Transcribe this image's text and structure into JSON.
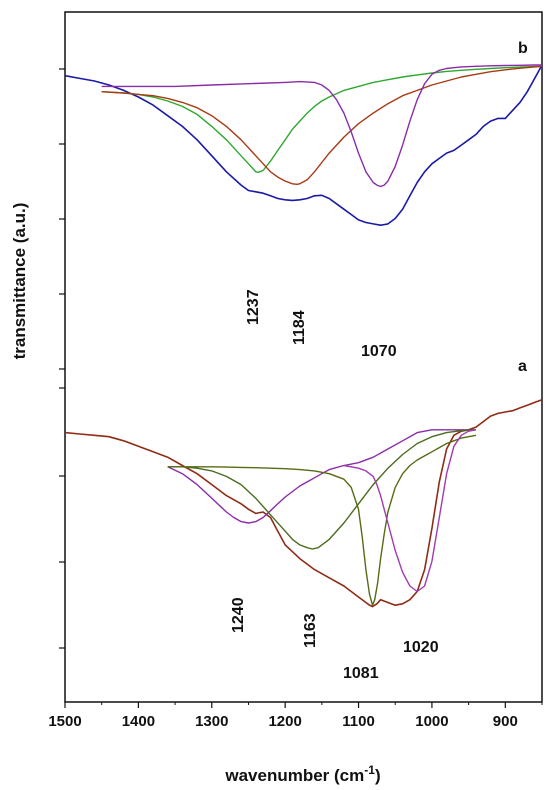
{
  "chart_data": {
    "type": "line",
    "xlabel": "wavenumber (cm",
    "xlabel_sup": "-1",
    "xlabel_close": ")",
    "ylabel": "transmittance (a.u.)",
    "xlim": [
      1500,
      850
    ],
    "x_reversed": true,
    "x_ticks": [
      "1500",
      "1400",
      "1300",
      "1200",
      "1100",
      "1000",
      "900"
    ],
    "y_ticks_labelled": false,
    "grid": false,
    "panels": [
      {
        "label": "b",
        "peak_labels": [
          "1237",
          "1184",
          "1070"
        ],
        "series": [
          {
            "color": "#1a1aa6",
            "kind": "measured",
            "x": [
              1500,
              1480,
              1460,
              1440,
              1420,
              1400,
              1380,
              1360,
              1340,
              1320,
              1300,
              1280,
              1260,
              1250,
              1240,
              1230,
              1220,
              1210,
              1200,
              1190,
              1180,
              1170,
              1160,
              1150,
              1140,
              1130,
              1120,
              1110,
              1100,
              1090,
              1080,
              1070,
              1060,
              1050,
              1040,
              1030,
              1020,
              1010,
              1000,
              990,
              980,
              970,
              960,
              950,
              940,
              930,
              920,
              910,
              900,
              890,
              880,
              870,
              860,
              850
            ],
            "y": [
              0.96,
              0.95,
              0.94,
              0.925,
              0.905,
              0.88,
              0.85,
              0.81,
              0.77,
              0.72,
              0.66,
              0.6,
              0.55,
              0.53,
              0.525,
              0.52,
              0.51,
              0.5,
              0.495,
              0.493,
              0.495,
              0.5,
              0.51,
              0.512,
              0.5,
              0.48,
              0.46,
              0.44,
              0.42,
              0.41,
              0.405,
              0.4,
              0.405,
              0.425,
              0.46,
              0.51,
              0.56,
              0.6,
              0.63,
              0.65,
              0.67,
              0.68,
              0.7,
              0.72,
              0.74,
              0.77,
              0.79,
              0.8,
              0.8,
              0.83,
              0.86,
              0.9,
              0.95,
              1.0
            ]
          },
          {
            "color": "#2ea82e",
            "kind": "fit",
            "x": [
              1450,
              1420,
              1400,
              1380,
              1360,
              1340,
              1320,
              1300,
              1280,
              1270,
              1260,
              1250,
              1240,
              1237,
              1230,
              1220,
              1210,
              1200,
              1190,
              1180,
              1170,
              1160,
              1150,
              1140,
              1120,
              1100,
              1080,
              1060,
              1040,
              1020,
              1000,
              980,
              960,
              940,
              920,
              900,
              880,
              860,
              850
            ],
            "y": [
              0.9,
              0.895,
              0.89,
              0.88,
              0.865,
              0.845,
              0.815,
              0.77,
              0.72,
              0.69,
              0.66,
              0.63,
              0.6,
              0.598,
              0.605,
              0.64,
              0.68,
              0.72,
              0.76,
              0.79,
              0.82,
              0.845,
              0.865,
              0.88,
              0.905,
              0.92,
              0.935,
              0.945,
              0.955,
              0.963,
              0.97,
              0.976,
              0.98,
              0.984,
              0.987,
              0.99,
              0.992,
              0.994,
              0.995
            ]
          },
          {
            "color": "#a83a14",
            "kind": "fit",
            "x": [
              1450,
              1420,
              1400,
              1380,
              1360,
              1340,
              1320,
              1300,
              1280,
              1260,
              1240,
              1220,
              1210,
              1200,
              1190,
              1184,
              1180,
              1170,
              1160,
              1150,
              1140,
              1120,
              1100,
              1080,
              1060,
              1040,
              1020,
              1000,
              980,
              960,
              940,
              920,
              900,
              880,
              860,
              850
            ],
            "y": [
              0.9,
              0.895,
              0.89,
              0.885,
              0.875,
              0.86,
              0.84,
              0.81,
              0.77,
              0.72,
              0.66,
              0.6,
              0.58,
              0.565,
              0.555,
              0.553,
              0.555,
              0.57,
              0.6,
              0.635,
              0.67,
              0.73,
              0.78,
              0.82,
              0.855,
              0.885,
              0.905,
              0.925,
              0.94,
              0.955,
              0.965,
              0.975,
              0.982,
              0.988,
              0.993,
              0.995
            ]
          },
          {
            "color": "#8a2ca8",
            "kind": "fit",
            "x": [
              1450,
              1400,
              1350,
              1300,
              1250,
              1200,
              1180,
              1160,
              1150,
              1140,
              1130,
              1120,
              1110,
              1100,
              1090,
              1080,
              1075,
              1070,
              1065,
              1060,
              1050,
              1040,
              1030,
              1020,
              1010,
              1000,
              990,
              980,
              970,
              960,
              940,
              920,
              900,
              880,
              860,
              850
            ],
            "y": [
              0.92,
              0.92,
              0.92,
              0.925,
              0.93,
              0.935,
              0.938,
              0.935,
              0.925,
              0.905,
              0.87,
              0.82,
              0.75,
              0.67,
              0.6,
              0.56,
              0.55,
              0.545,
              0.55,
              0.565,
              0.62,
              0.7,
              0.79,
              0.87,
              0.93,
              0.965,
              0.98,
              0.987,
              0.99,
              0.993,
              0.995,
              0.997,
              0.998,
              0.999,
              1.0,
              1.0
            ]
          }
        ]
      },
      {
        "label": "a",
        "peak_labels": [
          "1240",
          "1163",
          "1081",
          "1020"
        ],
        "series": [
          {
            "color": "#8e2c16",
            "kind": "measured",
            "x": [
              1500,
              1480,
              1460,
              1440,
              1420,
              1400,
              1380,
              1360,
              1340,
              1320,
              1300,
              1280,
              1260,
              1250,
              1240,
              1230,
              1220,
              1210,
              1200,
              1180,
              1160,
              1140,
              1120,
              1110,
              1100,
              1090,
              1085,
              1081,
              1075,
              1070,
              1060,
              1050,
              1040,
              1030,
              1020,
              1010,
              1000,
              990,
              980,
              970,
              960,
              950,
              940,
              930,
              920,
              910,
              900,
              890,
              880,
              870,
              860,
              850
            ],
            "y": [
              0.83,
              0.825,
              0.82,
              0.815,
              0.8,
              0.78,
              0.76,
              0.74,
              0.71,
              0.68,
              0.64,
              0.6,
              0.57,
              0.55,
              0.535,
              0.54,
              0.52,
              0.47,
              0.42,
              0.37,
              0.33,
              0.3,
              0.27,
              0.25,
              0.23,
              0.21,
              0.2,
              0.195,
              0.205,
              0.22,
              0.21,
              0.2,
              0.205,
              0.22,
              0.25,
              0.33,
              0.48,
              0.65,
              0.77,
              0.82,
              0.835,
              0.84,
              0.85,
              0.87,
              0.89,
              0.9,
              0.905,
              0.91,
              0.92,
              0.93,
              0.94,
              0.95
            ]
          },
          {
            "color": "#8a2ca8",
            "kind": "fit",
            "x": [
              1360,
              1340,
              1320,
              1300,
              1280,
              1270,
              1260,
              1250,
              1240,
              1230,
              1220,
              1210,
              1200,
              1190,
              1180,
              1170,
              1160,
              1150,
              1140,
              1120,
              1100,
              1080,
              1060,
              1040,
              1020,
              1000,
              980,
              960,
              940
            ],
            "y": [
              0.705,
              0.68,
              0.64,
              0.59,
              0.54,
              0.52,
              0.505,
              0.5,
              0.505,
              0.52,
              0.545,
              0.57,
              0.595,
              0.615,
              0.635,
              0.65,
              0.665,
              0.68,
              0.695,
              0.71,
              0.72,
              0.74,
              0.77,
              0.8,
              0.83,
              0.84,
              0.84,
              0.84,
              0.84
            ]
          },
          {
            "color": "#4b6b1e",
            "kind": "fit",
            "x": [
              1360,
              1340,
              1320,
              1300,
              1280,
              1260,
              1240,
              1220,
              1200,
              1190,
              1180,
              1170,
              1163,
              1155,
              1150,
              1140,
              1120,
              1100,
              1080,
              1060,
              1040,
              1020,
              1000,
              980,
              960,
              940
            ],
            "y": [
              0.705,
              0.705,
              0.7,
              0.69,
              0.67,
              0.64,
              0.59,
              0.53,
              0.47,
              0.44,
              0.42,
              0.41,
              0.405,
              0.41,
              0.42,
              0.44,
              0.5,
              0.57,
              0.64,
              0.7,
              0.75,
              0.79,
              0.815,
              0.83,
              0.837,
              0.84
            ]
          },
          {
            "color": "#556b14",
            "kind": "fit",
            "x": [
              1360,
              1340,
              1320,
              1300,
              1280,
              1260,
              1240,
              1220,
              1200,
              1180,
              1160,
              1140,
              1120,
              1110,
              1100,
              1095,
              1090,
              1085,
              1081,
              1078,
              1074,
              1070,
              1065,
              1060,
              1050,
              1040,
              1030,
              1020,
              1010,
              1000,
              990,
              980,
              970,
              960,
              950,
              940
            ],
            "y": [
              0.705,
              0.705,
              0.705,
              0.705,
              0.704,
              0.703,
              0.702,
              0.7,
              0.698,
              0.695,
              0.69,
              0.68,
              0.66,
              0.63,
              0.55,
              0.45,
              0.33,
              0.24,
              0.2,
              0.22,
              0.28,
              0.37,
              0.46,
              0.54,
              0.63,
              0.68,
              0.71,
              0.73,
              0.745,
              0.76,
              0.775,
              0.79,
              0.8,
              0.81,
              0.815,
              0.82
            ]
          },
          {
            "color": "#a23ab0",
            "kind": "fit",
            "x": [
              1120,
              1100,
              1090,
              1080,
              1075,
              1070,
              1065,
              1060,
              1050,
              1040,
              1030,
              1020,
              1010,
              1000,
              990,
              980,
              970,
              960,
              950,
              940
            ],
            "y": [
              0.71,
              0.7,
              0.69,
              0.67,
              0.64,
              0.6,
              0.55,
              0.5,
              0.4,
              0.32,
              0.27,
              0.25,
              0.27,
              0.36,
              0.52,
              0.68,
              0.78,
              0.82,
              0.835,
              0.84
            ]
          }
        ]
      }
    ]
  }
}
